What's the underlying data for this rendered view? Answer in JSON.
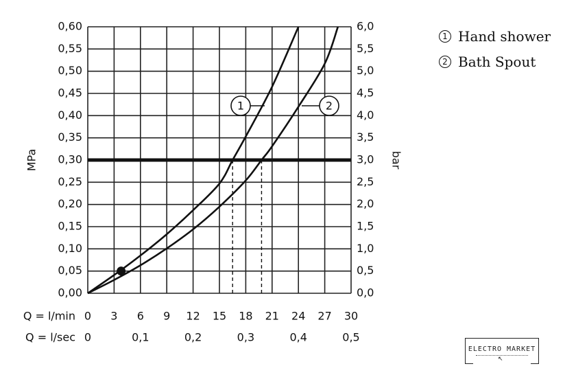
{
  "chart_data": {
    "type": "line",
    "y_left": {
      "label": "MPa",
      "range": [
        0,
        0.6
      ],
      "step": 0.05,
      "ticks": [
        "0,00",
        "0,05",
        "0,10",
        "0,15",
        "0,20",
        "0,25",
        "0,30",
        "0,35",
        "0,40",
        "0,45",
        "0,50",
        "0,55",
        "0,60"
      ]
    },
    "y_right": {
      "label": "bar",
      "range": [
        0,
        6
      ],
      "step": 0.5,
      "ticks": [
        "0,0",
        "0,5",
        "1,0",
        "1,5",
        "2,0",
        "2,5",
        "3,0",
        "3,5",
        "4,0",
        "4,5",
        "5,0",
        "5,5",
        "6,0"
      ]
    },
    "x": {
      "label_lpm": "Q = l/min",
      "label_lps": "Q = l/sec",
      "range": [
        0,
        30
      ],
      "step": 3,
      "ticks_lpm": [
        "0",
        "3",
        "6",
        "9",
        "12",
        "15",
        "18",
        "21",
        "24",
        "27",
        "30"
      ],
      "ticks_lps": [
        {
          "value": 0,
          "text": "0"
        },
        {
          "value": 6,
          "text": "0,1"
        },
        {
          "value": 12,
          "text": "0,2"
        },
        {
          "value": 18,
          "text": "0,3"
        },
        {
          "value": 24,
          "text": "0,4"
        },
        {
          "value": 30,
          "text": "0,5"
        }
      ]
    },
    "grid": true,
    "series": [
      {
        "name": "Hand shower",
        "marker": "1",
        "points": [
          [
            0,
            0
          ],
          [
            3,
            0.041
          ],
          [
            6,
            0.085
          ],
          [
            9,
            0.133
          ],
          [
            12,
            0.187
          ],
          [
            15,
            0.247
          ],
          [
            16.5,
            0.3
          ],
          [
            18,
            0.353
          ],
          [
            21,
            0.465
          ],
          [
            24,
            0.6
          ]
        ]
      },
      {
        "name": "Bath Spout",
        "marker": "2",
        "points": [
          [
            0,
            0
          ],
          [
            3,
            0.03
          ],
          [
            6,
            0.063
          ],
          [
            9,
            0.101
          ],
          [
            12,
            0.144
          ],
          [
            15,
            0.195
          ],
          [
            18,
            0.254
          ],
          [
            19.8,
            0.3
          ],
          [
            21,
            0.331
          ],
          [
            24,
            0.42
          ],
          [
            27,
            0.517
          ],
          [
            28.5,
            0.6
          ]
        ]
      }
    ],
    "reference_line": {
      "y": 0.3
    },
    "dashed_drops": [
      16.5,
      19.8
    ],
    "point_marker": [
      3.8,
      0.05
    ]
  },
  "legend": [
    {
      "num": "1",
      "text": "Hand shower"
    },
    {
      "num": "2",
      "text": "Bath Spout"
    }
  ],
  "logo": {
    "text": "ELECTRO MARKET"
  }
}
